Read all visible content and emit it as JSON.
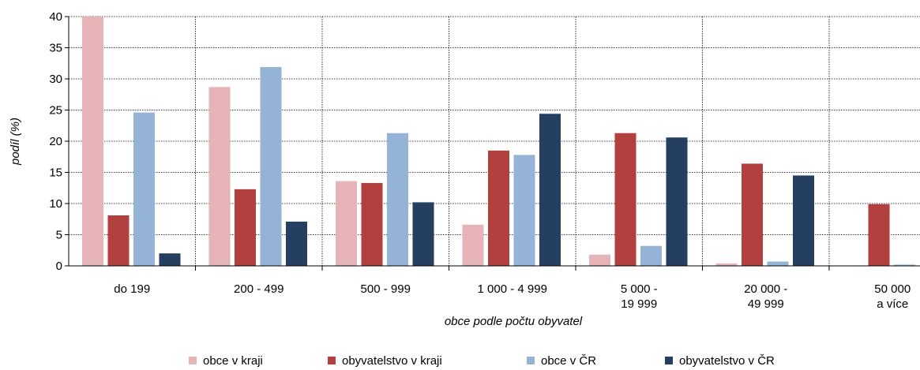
{
  "chart_data": {
    "type": "bar",
    "categories": [
      [
        "do 199"
      ],
      [
        "200 - 499"
      ],
      [
        "500 - 999"
      ],
      [
        "1 000 - 4 999"
      ],
      [
        "5 000 -",
        "19 999"
      ],
      [
        "20 000 -",
        "49 999"
      ],
      [
        "50 000",
        "a více"
      ]
    ],
    "series": [
      {
        "name": "obce v kraji",
        "color": "#e6b4b6",
        "values": [
          40,
          28.7,
          13.6,
          6.6,
          1.8,
          0.4,
          0
        ]
      },
      {
        "name": "obyvatelstvo v kraji",
        "color": "#b1403f",
        "values": [
          8.1,
          12.3,
          13.3,
          18.5,
          21.3,
          16.4,
          9.9
        ]
      },
      {
        "name": "obce v ČR",
        "color": "#95b3d7",
        "values": [
          24.6,
          31.9,
          21.3,
          17.8,
          3.2,
          0.7,
          0.2
        ]
      },
      {
        "name": "obyvatelstvo v ČR",
        "color": "#243f60",
        "values": [
          2.0,
          7.1,
          10.2,
          24.4,
          20.6,
          14.5,
          0
        ]
      }
    ],
    "ylabel": "podíl (%)",
    "xlabel": "obce podle počtu obyvatel",
    "ylim": [
      0,
      40
    ],
    "yticks": [
      "0",
      "5",
      "10",
      "15",
      "20",
      "25",
      "30",
      "35",
      "40"
    ],
    "grid": true,
    "legend_position": "bottom"
  }
}
